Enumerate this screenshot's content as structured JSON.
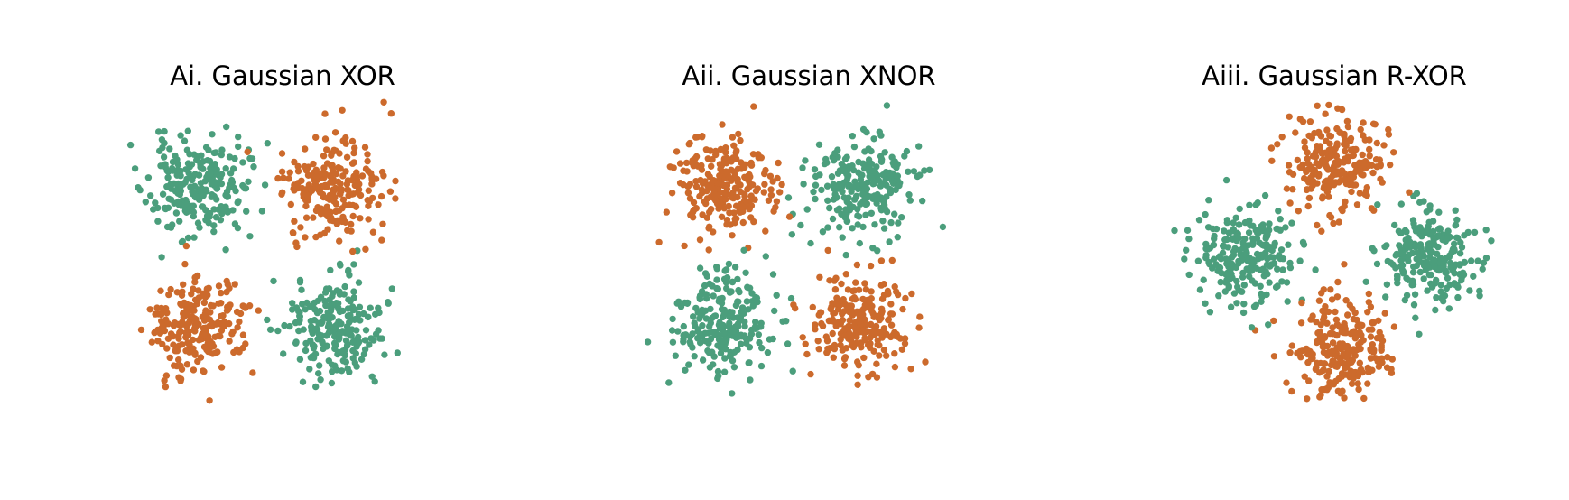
{
  "colors": {
    "orange": "#CC6A2C",
    "green": "#4B9E7C"
  },
  "figure": {
    "background": "#ffffff"
  },
  "chart_data": [
    {
      "type": "scatter",
      "title": "Ai. Gaussian XOR",
      "axes": "off",
      "grid": false,
      "xlim": [
        -2.3,
        2.3
      ],
      "ylim": [
        -2.3,
        2.3
      ],
      "clusters": [
        {
          "class": "green",
          "center": [
            -1.0,
            1.0
          ],
          "std": 0.36,
          "n": 230
        },
        {
          "class": "orange",
          "center": [
            1.0,
            1.0
          ],
          "std": 0.36,
          "n": 230
        },
        {
          "class": "orange",
          "center": [
            -1.0,
            -1.0
          ],
          "std": 0.36,
          "n": 230
        },
        {
          "class": "green",
          "center": [
            1.0,
            -1.0
          ],
          "std": 0.36,
          "n": 230
        }
      ],
      "seed": 11
    },
    {
      "type": "scatter",
      "title": "Aii. Gaussian XNOR",
      "axes": "off",
      "grid": false,
      "xlim": [
        -2.3,
        2.3
      ],
      "ylim": [
        -2.3,
        2.3
      ],
      "clusters": [
        {
          "class": "orange",
          "center": [
            -1.0,
            1.0
          ],
          "std": 0.36,
          "n": 230
        },
        {
          "class": "green",
          "center": [
            1.0,
            1.0
          ],
          "std": 0.36,
          "n": 230
        },
        {
          "class": "green",
          "center": [
            -1.0,
            -1.0
          ],
          "std": 0.36,
          "n": 230
        },
        {
          "class": "orange",
          "center": [
            1.0,
            -1.0
          ],
          "std": 0.36,
          "n": 230
        }
      ],
      "seed": 23
    },
    {
      "type": "scatter",
      "title": "Aiii. Gaussian R-XOR",
      "axes": "off",
      "grid": false,
      "xlim": [
        -2.3,
        2.3
      ],
      "ylim": [
        -2.3,
        2.3
      ],
      "clusters": [
        {
          "class": "orange",
          "center": [
            0.0,
            1.35
          ],
          "std": 0.36,
          "n": 230
        },
        {
          "class": "green",
          "center": [
            -1.35,
            0.0
          ],
          "std": 0.36,
          "n": 230
        },
        {
          "class": "green",
          "center": [
            1.35,
            0.0
          ],
          "std": 0.36,
          "n": 230
        },
        {
          "class": "orange",
          "center": [
            0.0,
            -1.35
          ],
          "std": 0.36,
          "n": 230
        }
      ],
      "seed": 37
    }
  ]
}
